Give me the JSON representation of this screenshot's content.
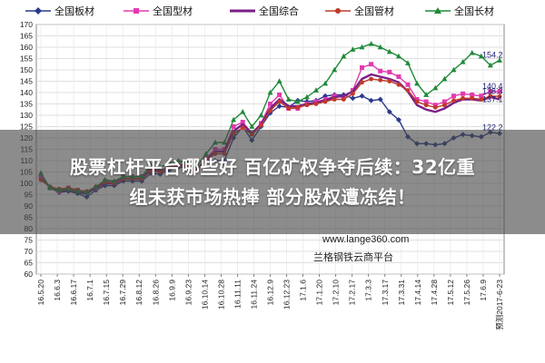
{
  "chart_data": {
    "type": "line",
    "title": "",
    "xlabel": "",
    "ylabel": "",
    "ylim": [
      60,
      170
    ],
    "yticks": [
      60,
      65,
      70,
      75,
      80,
      85,
      90,
      95,
      100,
      105,
      110,
      115,
      120,
      125,
      130,
      135,
      140,
      145,
      150,
      155,
      160,
      165,
      170
    ],
    "grid": true,
    "legend_position": "top",
    "x_tick_labels": [
      "16.5.20",
      "16.6.3",
      "16.6.17",
      "16.7.1",
      "16.7.15",
      "16.7.29",
      "16.8.12",
      "16.8.26",
      "16.9.9",
      "16.9.23",
      "16.10.14",
      "16.10.28",
      "16.11.11",
      "16.11.24",
      "16.12.9",
      "16.12.23",
      "17.1.6",
      "17.1.20",
      "17.2.10",
      "17.2.17",
      "17.3.3",
      "17.3.17",
      "17.3.31",
      "17.4.14",
      "17.4.28",
      "17.5.12",
      "17.5.26",
      "17.6.9",
      "预测2017-6-23"
    ],
    "series": [
      {
        "name": "全国板材",
        "color": "#2a3a8c",
        "marker": "diamond",
        "values": [
          103.5,
          98,
          96,
          96.5,
          95.5,
          94,
          97,
          99,
          99,
          101,
          101,
          101,
          104.5,
          104,
          106,
          107,
          107,
          106,
          110,
          110,
          110,
          120,
          125,
          119,
          125,
          131,
          134,
          133.5,
          136.5,
          136,
          136.5,
          138.5,
          139,
          139,
          137.5,
          138.5,
          136.5,
          137,
          131.5,
          128,
          120.5,
          117.5,
          117.5,
          117,
          117.5,
          120,
          121.5,
          121,
          120.5,
          122.5,
          122
        ]
      },
      {
        "name": "全国型材",
        "color": "#e23ab0",
        "marker": "square",
        "values": [
          103,
          98,
          96.5,
          98,
          97,
          96,
          98,
          101,
          100.5,
          103,
          103,
          103,
          107,
          105.5,
          107.5,
          108,
          107.5,
          106,
          111,
          115,
          115,
          125,
          127,
          122,
          126.5,
          135,
          139,
          133,
          133,
          135,
          136,
          137,
          138.5,
          138,
          141,
          151,
          152.5,
          149.5,
          149,
          147,
          143.5,
          137,
          136,
          134.5,
          136,
          138.5,
          139.5,
          139,
          138.5,
          140.5,
          140.5
        ]
      },
      {
        "name": "全国综合",
        "color": "#7a1f86",
        "marker": "none",
        "values": [
          102,
          98.5,
          96.5,
          97,
          96,
          95.5,
          98,
          100,
          100,
          102,
          102,
          102,
          106,
          105,
          107,
          108,
          108,
          106.5,
          110,
          114,
          114,
          123,
          126,
          122,
          126,
          133,
          137,
          134,
          134,
          135,
          135.5,
          136.5,
          138,
          138.5,
          140.5,
          146,
          148,
          147,
          146,
          144.5,
          140.5,
          134.5,
          132.5,
          131.5,
          133,
          135.5,
          137,
          137,
          136.5,
          138,
          137
        ]
      },
      {
        "name": "全国管材",
        "color": "#c0392b",
        "marker": "circle",
        "values": [
          101.5,
          98.5,
          97.5,
          98,
          97,
          96.5,
          98.5,
          100.5,
          100,
          102,
          102,
          102,
          105.5,
          105,
          107,
          108,
          108,
          106.5,
          110,
          113,
          113,
          122,
          124.5,
          121.5,
          125.5,
          132,
          136,
          133,
          133.5,
          134.5,
          135,
          136,
          137,
          137,
          139.5,
          144.5,
          146,
          145.5,
          145,
          143.5,
          141,
          136,
          134.5,
          133.5,
          134.5,
          136.5,
          137.5,
          137.5,
          137,
          138.5,
          138.3
        ]
      },
      {
        "name": "全国长材",
        "color": "#1f8a3a",
        "marker": "triangle",
        "values": [
          104.5,
          98,
          97,
          97.5,
          96.5,
          96,
          98.5,
          101.5,
          101,
          103,
          103,
          103,
          108,
          107,
          109,
          110,
          109,
          107.5,
          113,
          118,
          118,
          128,
          131.5,
          125,
          130,
          140,
          145,
          137,
          136,
          138,
          141,
          144,
          150,
          156,
          159,
          160,
          161.5,
          160,
          158,
          156,
          153,
          144,
          139,
          142,
          146,
          150,
          153.5,
          157.5,
          156,
          152,
          154.2
        ]
      }
    ],
    "annotations": [
      "154.2",
      "140.4",
      "138.3",
      "137.1",
      "122.2"
    ]
  },
  "banner": {
    "line1": "股票杠杆平台哪些好 百亿矿权争夺后续：32亿重",
    "line2": "组未获市场热捧 部分股权遭冻结！"
  },
  "watermark": {
    "url": "www.lange360.com",
    "name": "兰格钢铁云商平台"
  }
}
